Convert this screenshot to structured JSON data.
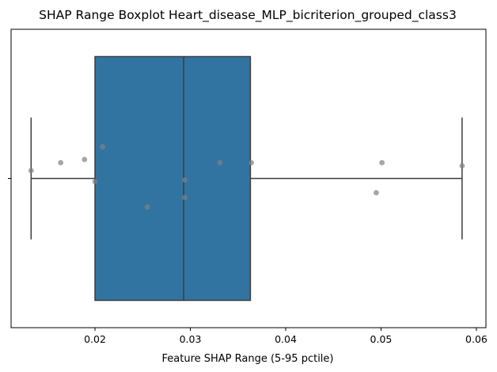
{
  "chart_data": {
    "type": "boxplot",
    "title": "SHAP Range Boxplot Heart_disease_MLP_bicriterion_grouped_class3",
    "xlabel": "Feature SHAP Range (5-95 pctile)",
    "ylabel": "",
    "xlim": [
      0.0112,
      0.061
    ],
    "xticks": [
      0.02,
      0.03,
      0.04,
      0.05,
      0.06
    ],
    "xtick_labels": [
      "0.02",
      "0.03",
      "0.04",
      "0.05",
      "0.06"
    ],
    "grid": false,
    "box": {
      "whisker_low": 0.0133,
      "q1": 0.02,
      "median": 0.0293,
      "q3": 0.0363,
      "whisker_high": 0.0585,
      "color": "#3274a1",
      "edge_color": "#3d3d3d"
    },
    "points": [
      {
        "x": 0.0133,
        "y": 0.05
      },
      {
        "x": 0.0164,
        "y": 0.1
      },
      {
        "x": 0.0189,
        "y": 0.12
      },
      {
        "x": 0.02,
        "y": -0.02
      },
      {
        "x": 0.0208,
        "y": 0.2
      },
      {
        "x": 0.0255,
        "y": -0.18
      },
      {
        "x": 0.0294,
        "y": -0.01
      },
      {
        "x": 0.0294,
        "y": -0.12
      },
      {
        "x": 0.0331,
        "y": 0.1
      },
      {
        "x": 0.0364,
        "y": 0.1
      },
      {
        "x": 0.0495,
        "y": -0.09
      },
      {
        "x": 0.0501,
        "y": 0.1
      },
      {
        "x": 0.0585,
        "y": 0.08
      }
    ],
    "point_color": "#808080"
  }
}
